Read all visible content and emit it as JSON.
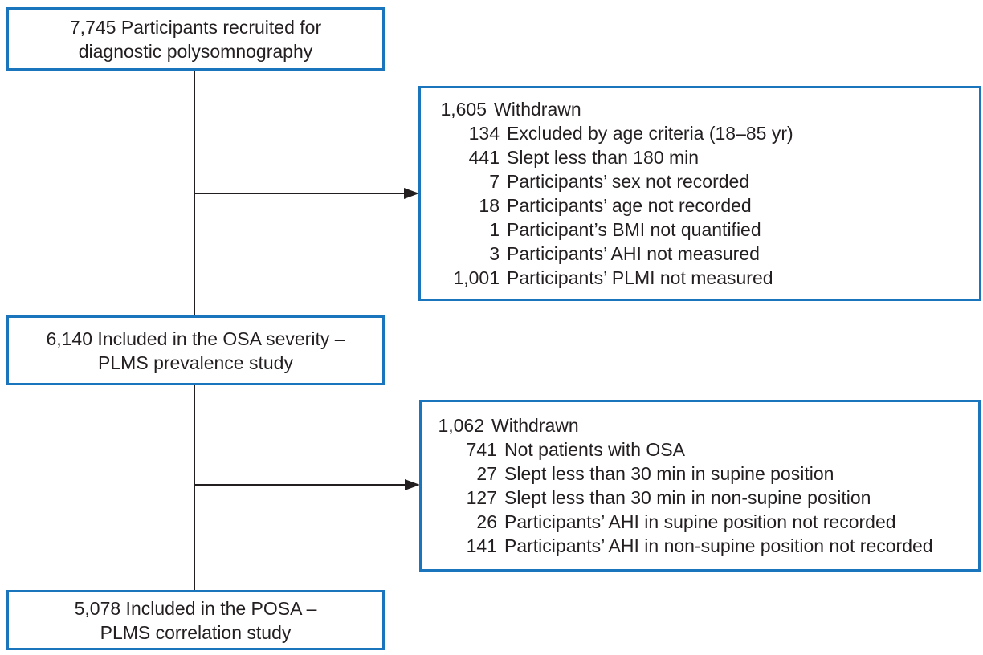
{
  "diagram": {
    "box_recruited": {
      "lines": [
        "7,745 Participants recruited for",
        "diagnostic polysomnography"
      ]
    },
    "box_withdrawn_1": {
      "num": "1,605",
      "label": "Withdrawn",
      "items": [
        {
          "num": "134",
          "label": "Excluded by age criteria (18–85 yr)"
        },
        {
          "num": "441",
          "label": "Slept less than 180 min"
        },
        {
          "num": "7",
          "label": "Participants’ sex not recorded"
        },
        {
          "num": "18",
          "label": "Participants’ age not recorded"
        },
        {
          "num": "1",
          "label": "Participant’s BMI not quantified"
        },
        {
          "num": "3",
          "label": "Participants’ AHI not measured"
        },
        {
          "num": "1,001",
          "label": "Participants’ PLMI not measured"
        }
      ]
    },
    "box_osa": {
      "lines": [
        "6,140 Included in the OSA severity –",
        "PLMS prevalence study"
      ]
    },
    "box_withdrawn_2": {
      "num": "1,062",
      "label": "Withdrawn",
      "items": [
        {
          "num": "741",
          "label": "Not patients with OSA"
        },
        {
          "num": "27",
          "label": "Slept less than 30 min in supine position"
        },
        {
          "num": "127",
          "label": "Slept less than 30 min in non-supine position"
        },
        {
          "num": "26",
          "label": "Participants’ AHI in supine position not recorded"
        },
        {
          "num": "141",
          "label": "Participants’ AHI in non-supine position not recorded"
        }
      ]
    },
    "box_posa": {
      "lines": [
        "5,078 Included in the POSA –",
        "PLMS correlation study"
      ]
    },
    "colors": {
      "box_border": "#1b75bc",
      "line": "#231f20",
      "text": "#231f20",
      "background": "#ffffff"
    }
  }
}
